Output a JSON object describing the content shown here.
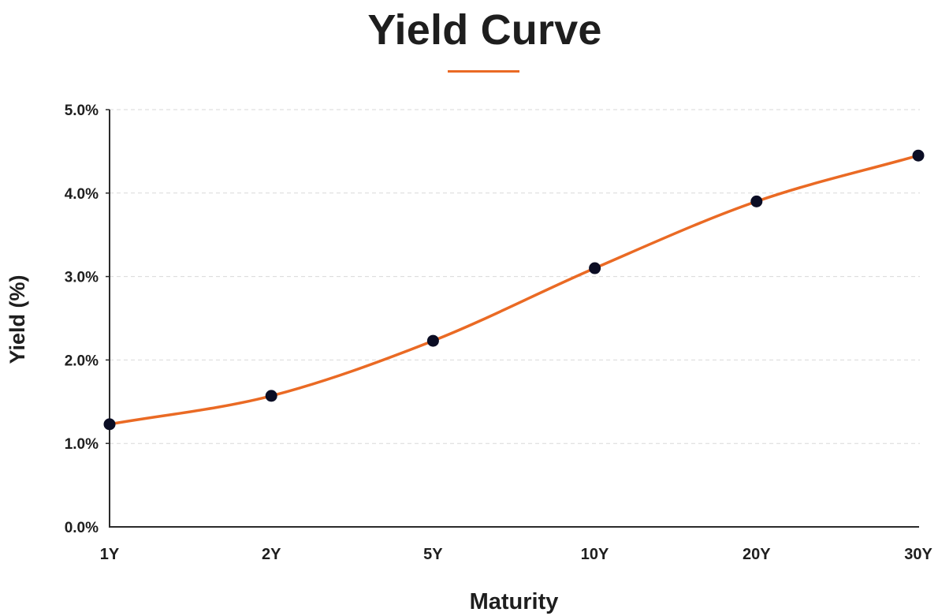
{
  "chart_data": {
    "type": "line",
    "title": "Yield Curve",
    "xlabel": "Maturity",
    "ylabel": "Yield (%)",
    "categories": [
      "1Y",
      "2Y",
      "5Y",
      "10Y",
      "20Y",
      "30Y"
    ],
    "series": [
      {
        "values": [
          1.23,
          1.57,
          2.23,
          3.1,
          3.9,
          4.45
        ]
      }
    ],
    "ylim": [
      0,
      5
    ],
    "yticks": [
      "0.0%",
      "1.0%",
      "2.0%",
      "3.0%",
      "4.0%",
      "5.0%"
    ],
    "grid": "horizontal-dashed",
    "legend": "none",
    "colors": {
      "line": "#ea6a24",
      "marker": "#0b0d24",
      "text": "#1e1e1e",
      "axis": "#2b2b2b",
      "grid": "#d9d9d9"
    }
  }
}
